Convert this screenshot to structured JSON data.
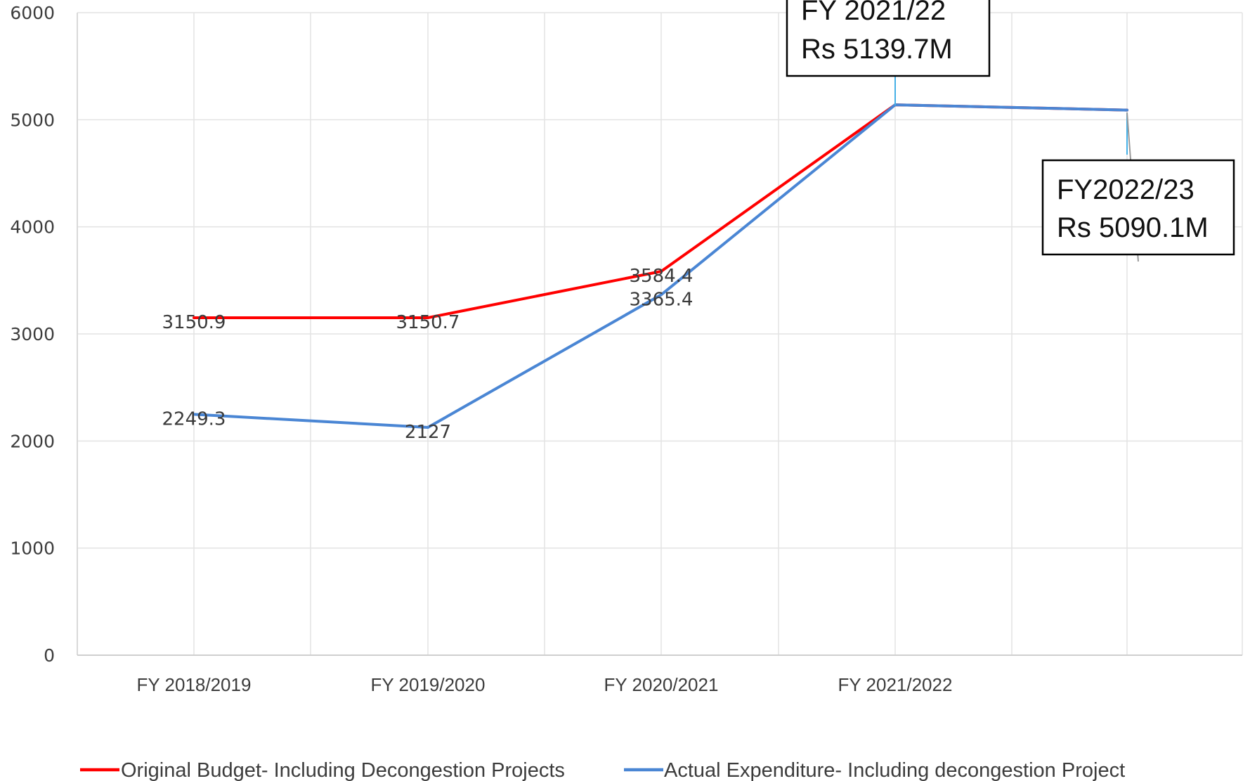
{
  "chart_data": {
    "type": "line",
    "categories": [
      "FY 2018/2019",
      "FY 2019/2020",
      "FY 2020/2021",
      "FY 2021/2022",
      ""
    ],
    "series": [
      {
        "name": "Original Budget- Including Decongestion Projects",
        "color": "#ff0000",
        "values": [
          3150.9,
          3150.7,
          3584.4,
          5139.7,
          5090.1
        ],
        "data_labels": [
          "3150.9",
          "3150.7",
          "3584.4",
          "",
          ""
        ]
      },
      {
        "name": "Actual Expenditure- Including decongestion Project",
        "color": "#4a86d4",
        "values": [
          2249.3,
          2127,
          3365.4,
          5139.7,
          5090.1
        ],
        "data_labels": [
          "2249.3",
          "2127",
          "3365.4",
          "",
          ""
        ]
      }
    ],
    "yticks": [
      "0",
      "1000",
      "2000",
      "3000",
      "4000",
      "5000",
      "6000"
    ],
    "ylim": [
      0,
      6000
    ],
    "grid": true,
    "legend_position": "bottom",
    "callouts": [
      {
        "point_index": 3,
        "lines": [
          "FY 2021/22",
          "Rs 5139.7M"
        ]
      },
      {
        "point_index": 4,
        "lines": [
          "FY2022/23",
          "Rs 5090.1M"
        ]
      }
    ],
    "title": "",
    "xlabel": "",
    "ylabel": ""
  }
}
